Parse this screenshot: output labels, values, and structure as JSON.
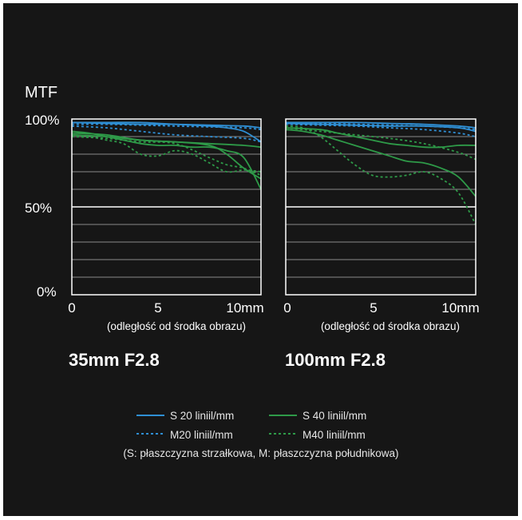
{
  "colors": {
    "background": "#161616",
    "plot_bg": "#161616",
    "grid": "#8a8a8a",
    "s20": "#2f8fd4",
    "s40": "#2e9a48",
    "accent_text": "#ffffff"
  },
  "labels": {
    "ylabel": "MTF",
    "yticks": [
      "100%",
      "50%",
      "0%"
    ],
    "xticks": [
      "0",
      "5",
      "10mm"
    ],
    "xlabel": "(odległość od środka obrazu)",
    "note": "(S: płaszczyzna strzałkowa, M: płaszczyzna południkowa)"
  },
  "legend": [
    {
      "label": "S 20 liniil/mm",
      "color": "#2f8fd4",
      "dash": "solid"
    },
    {
      "label": "S 40 liniil/mm",
      "color": "#2e9a48",
      "dash": "solid"
    },
    {
      "label": "M20 liniil/mm",
      "color": "#2f8fd4",
      "dash": "dashed"
    },
    {
      "label": "M40 liniil/mm",
      "color": "#2e9a48",
      "dash": "dashed"
    }
  ],
  "chart_data": [
    {
      "type": "line",
      "title": "35mm F2.8",
      "xlabel": "(odległość od środka obrazu)",
      "ylabel": "MTF",
      "xlim": [
        0,
        11
      ],
      "ylim": [
        0,
        100
      ],
      "grid": true,
      "series": [
        {
          "name": "S 20 liniil/mm",
          "color": "#2f8fd4",
          "dash": "solid",
          "x": [
            0,
            2,
            4,
            6,
            8,
            9,
            10,
            11
          ],
          "y": [
            98,
            98,
            98,
            97,
            96,
            95,
            93,
            87
          ]
        },
        {
          "name": "S 20 liniil/mm",
          "color": "#2f8fd4",
          "dash": "solid",
          "x": [
            0,
            2,
            4,
            6,
            8,
            10,
            11
          ],
          "y": [
            98,
            97.5,
            97,
            97,
            96.5,
            96,
            95
          ]
        },
        {
          "name": "M20 liniil/mm",
          "color": "#2f8fd4",
          "dash": "dashed",
          "x": [
            0,
            2,
            4,
            6,
            8,
            10,
            11
          ],
          "y": [
            96,
            95,
            93,
            91,
            90,
            89,
            87
          ]
        },
        {
          "name": "M20 liniil/mm",
          "color": "#2f8fd4",
          "dash": "dashed",
          "x": [
            0,
            2,
            4,
            6,
            8,
            10,
            11
          ],
          "y": [
            97,
            97,
            96.5,
            96,
            95.5,
            95,
            94
          ]
        },
        {
          "name": "S 40 liniil/mm",
          "color": "#2e9a48",
          "dash": "solid",
          "x": [
            0,
            1,
            2,
            3,
            4,
            5,
            6,
            7,
            8,
            9,
            10,
            11
          ],
          "y": [
            93,
            92,
            90,
            88,
            86,
            85,
            85,
            84,
            84,
            82,
            78,
            60
          ]
        },
        {
          "name": "S 40 liniil/mm",
          "color": "#2e9a48",
          "dash": "solid",
          "x": [
            0,
            2,
            4,
            6,
            8,
            9,
            10,
            11
          ],
          "y": [
            92,
            91,
            88,
            87,
            85,
            80,
            72,
            66
          ]
        },
        {
          "name": "S 40 liniil/mm",
          "color": "#2e9a48",
          "dash": "solid",
          "x": [
            0,
            2,
            4,
            6,
            8,
            10,
            11
          ],
          "y": [
            91,
            90,
            88,
            87,
            86,
            85,
            84
          ]
        },
        {
          "name": "M40 liniil/mm",
          "color": "#2e9a48",
          "dash": "dashed",
          "x": [
            0,
            1,
            2,
            3,
            4,
            5,
            6,
            7,
            8,
            9,
            10,
            11
          ],
          "y": [
            91,
            90,
            88,
            86,
            80,
            79,
            82,
            80,
            75,
            70,
            71,
            70
          ]
        },
        {
          "name": "M40 liniil/mm",
          "color": "#2e9a48",
          "dash": "dashed",
          "x": [
            0,
            2,
            4,
            6,
            8,
            9,
            10,
            11
          ],
          "y": [
            90,
            89,
            87,
            86,
            78,
            74,
            72,
            68
          ]
        }
      ]
    },
    {
      "type": "line",
      "title": "100mm F2.8",
      "xlabel": "(odległość od środka obrazu)",
      "ylabel": "MTF",
      "xlim": [
        0,
        11
      ],
      "ylim": [
        0,
        100
      ],
      "grid": true,
      "series": [
        {
          "name": "S 20 liniil/mm",
          "color": "#2f8fd4",
          "dash": "solid",
          "x": [
            0,
            2,
            4,
            6,
            8,
            10,
            11
          ],
          "y": [
            98,
            98,
            98,
            97.5,
            97,
            96,
            95
          ]
        },
        {
          "name": "S 20 liniil/mm",
          "color": "#2f8fd4",
          "dash": "solid",
          "x": [
            0,
            2,
            4,
            6,
            8,
            10,
            11
          ],
          "y": [
            97.5,
            97,
            96.5,
            96,
            96,
            95,
            93
          ]
        },
        {
          "name": "M20 liniil/mm",
          "color": "#2f8fd4",
          "dash": "dashed",
          "x": [
            0,
            2,
            4,
            6,
            8,
            10,
            11
          ],
          "y": [
            97,
            96.5,
            96,
            95,
            94,
            92,
            90
          ]
        },
        {
          "name": "M20 liniil/mm",
          "color": "#2f8fd4",
          "dash": "dashed",
          "x": [
            0,
            2,
            4,
            6,
            8,
            10,
            11
          ],
          "y": [
            98,
            97.5,
            97,
            96.5,
            96,
            95,
            94
          ]
        },
        {
          "name": "S 40 liniil/mm",
          "color": "#2e9a48",
          "dash": "solid",
          "x": [
            0,
            2,
            3,
            4,
            5,
            6,
            7,
            8,
            9,
            10,
            11
          ],
          "y": [
            95,
            94,
            92,
            90,
            88,
            86,
            85,
            84,
            84,
            85,
            85
          ]
        },
        {
          "name": "S 40 liniil/mm",
          "color": "#2e9a48",
          "dash": "solid",
          "x": [
            0,
            1,
            2,
            3,
            4,
            5,
            6,
            7,
            8,
            9,
            10,
            11
          ],
          "y": [
            94,
            93,
            91,
            88,
            85,
            82,
            79,
            76,
            75,
            72,
            67,
            56
          ]
        },
        {
          "name": "M40 liniil/mm",
          "color": "#2e9a48",
          "dash": "dashed",
          "x": [
            0,
            1,
            2,
            3,
            4,
            5,
            6,
            7,
            8,
            9,
            10,
            11
          ],
          "y": [
            96,
            95,
            90,
            82,
            74,
            68,
            67,
            68,
            70,
            66,
            58,
            40
          ]
        },
        {
          "name": "M40 liniil/mm",
          "color": "#2e9a48",
          "dash": "dashed",
          "x": [
            0,
            2,
            4,
            6,
            8,
            10,
            11
          ],
          "y": [
            95,
            93,
            91,
            89,
            86,
            81,
            77
          ]
        }
      ]
    }
  ]
}
